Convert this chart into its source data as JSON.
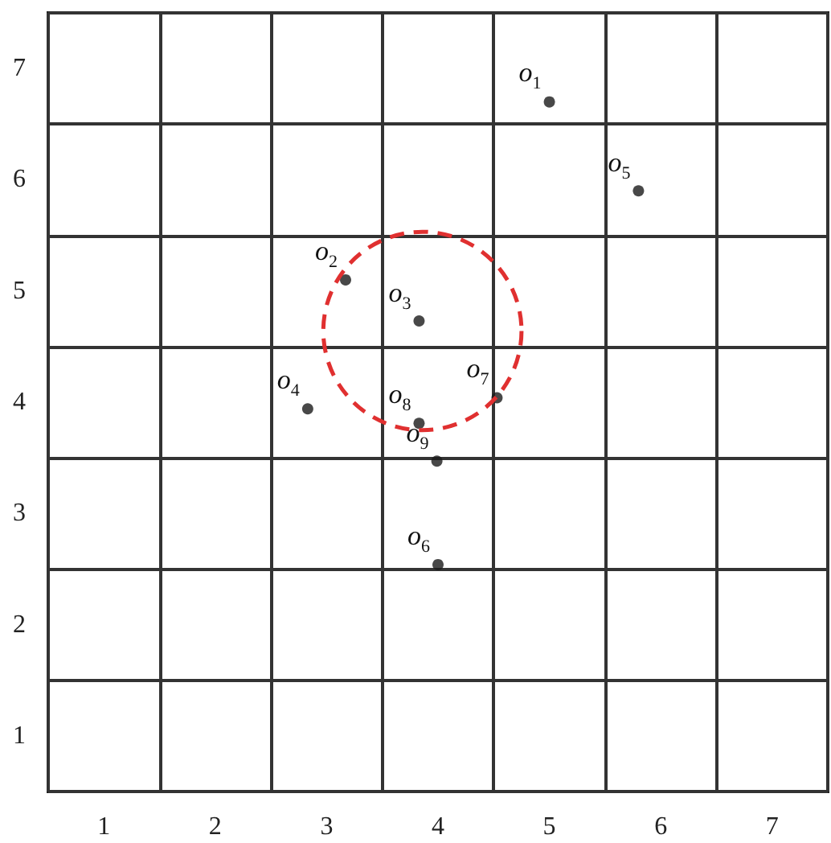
{
  "chart_data": {
    "type": "scatter",
    "xlim": [
      0.5,
      7.5
    ],
    "ylim": [
      0.5,
      7.5
    ],
    "xticks": [
      {
        "value": 0.5,
        "label": null
      },
      1,
      {
        "value": 1.5,
        "label": null
      },
      2,
      {
        "value": 2.5,
        "label": null
      },
      3,
      {
        "value": 3.5,
        "label": null
      },
      4,
      {
        "value": 4.5,
        "label": null
      },
      5,
      {
        "value": 5.5,
        "label": null
      },
      6,
      {
        "value": 6.5,
        "label": null
      },
      7,
      {
        "value": 7.5,
        "label": null
      }
    ],
    "yticks": [
      {
        "value": 0.5,
        "label": null
      },
      1,
      {
        "value": 1.5,
        "label": null
      },
      2,
      {
        "value": 2.5,
        "label": null
      },
      3,
      {
        "value": 3.5,
        "label": null
      },
      4,
      {
        "value": 4.5,
        "label": null
      },
      5,
      {
        "value": 5.5,
        "label": null
      },
      6,
      {
        "value": 6.5,
        "label": null
      },
      7,
      {
        "value": 7.5,
        "label": null
      }
    ],
    "grid": true,
    "marker": "circle",
    "series": [
      {
        "type": "scatter",
        "color": "#1a1a1a",
        "x": [
          5.0,
          3.17,
          3.83,
          2.83,
          5.8,
          4.0,
          4.53,
          3.83,
          3.99
        ],
        "values": [
          6.7,
          5.1,
          4.73,
          3.94,
          5.9,
          2.54,
          4.04,
          3.81,
          3.47
        ]
      }
    ],
    "annotations": [
      {
        "text": "o$_{1}$",
        "x": 5.0,
        "y": 6.7
      },
      {
        "text": "o$_{2}$",
        "x": 3.17,
        "y": 5.1
      },
      {
        "text": "o$_{3}$",
        "x": 3.83,
        "y": 4.73
      },
      {
        "text": "o$_{4}$",
        "x": 2.83,
        "y": 3.94
      },
      {
        "text": "o$_{5}$",
        "x": 5.8,
        "y": 5.9
      },
      {
        "text": "o$_{6}$",
        "x": 4.0,
        "y": 2.54
      },
      {
        "text": "o$_{7}$",
        "x": 4.53,
        "y": 4.04
      },
      {
        "text": "o$_{8}$",
        "x": 3.83,
        "y": 3.81
      },
      {
        "text": "o$_{9}$",
        "x": 3.99,
        "y": 3.47
      }
    ]
  }
}
